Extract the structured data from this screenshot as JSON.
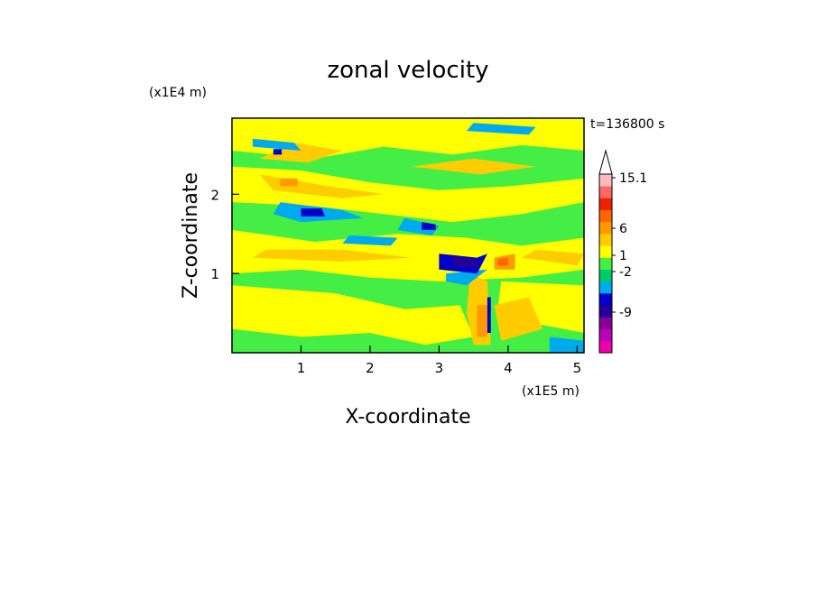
{
  "chart_data": {
    "type": "heatmap",
    "title": "zonal velocity",
    "xlabel": "X-coordinate",
    "ylabel": "Z-coordinate",
    "x_unit": "(x1E5 m)",
    "y_unit": "(x1E4 m)",
    "time_label": "t=136800 s",
    "xlim": [
      0,
      5.1
    ],
    "ylim": [
      0,
      2.96
    ],
    "x_ticks": [
      1,
      2,
      3,
      4,
      5
    ],
    "y_ticks": [
      1,
      2
    ],
    "colorbar": {
      "colors": [
        "#ee00aa",
        "#bb00bb",
        "#880099",
        "#220099",
        "#0000cc",
        "#00aaee",
        "#00cc66",
        "#44ee44",
        "#ffff00",
        "#ffcc00",
        "#ff9900",
        "#ff6600",
        "#ee2200",
        "#ff6666",
        "#ffbbbb"
      ],
      "tick_labels": [
        {
          "label": "15.1",
          "level": 15.1
        },
        {
          "label": "6",
          "level": 6
        },
        {
          "label": "1",
          "level": 1
        },
        {
          "label": "-2",
          "level": -2
        },
        {
          "label": "-9",
          "level": -9
        }
      ],
      "top_arrow_color": "#ffffff"
    },
    "background_level_color": "#44ee44",
    "regions": [
      {
        "shape": "band",
        "color": "#ffff00",
        "points": [
          [
            0,
            2.96
          ],
          [
            5.1,
            2.96
          ],
          [
            5.1,
            2.55
          ],
          [
            4.2,
            2.62
          ],
          [
            3.2,
            2.5
          ],
          [
            2.2,
            2.6
          ],
          [
            1.2,
            2.45
          ],
          [
            0,
            2.55
          ]
        ]
      },
      {
        "shape": "band",
        "color": "#ffff00",
        "points": [
          [
            0,
            2.35
          ],
          [
            1.0,
            2.3
          ],
          [
            2.0,
            2.15
          ],
          [
            3.0,
            2.05
          ],
          [
            4.0,
            2.1
          ],
          [
            5.1,
            2.2
          ],
          [
            5.1,
            1.9
          ],
          [
            4.2,
            1.75
          ],
          [
            3.2,
            1.65
          ],
          [
            2.2,
            1.75
          ],
          [
            1.2,
            1.85
          ],
          [
            0,
            1.9
          ]
        ]
      },
      {
        "shape": "band",
        "color": "#ffff00",
        "points": [
          [
            0,
            1.55
          ],
          [
            1.2,
            1.4
          ],
          [
            2.4,
            1.5
          ],
          [
            3.4,
            1.45
          ],
          [
            4.2,
            1.35
          ],
          [
            5.1,
            1.45
          ],
          [
            5.1,
            1.05
          ],
          [
            4.2,
            0.95
          ],
          [
            3.0,
            0.9
          ],
          [
            2.0,
            0.95
          ],
          [
            1.0,
            1.05
          ],
          [
            0,
            1.0
          ]
        ]
      },
      {
        "shape": "band",
        "color": "#ffff00",
        "points": [
          [
            0,
            0.85
          ],
          [
            1.5,
            0.75
          ],
          [
            2.5,
            0.55
          ],
          [
            3.3,
            0.6
          ],
          [
            3.5,
            0.2
          ],
          [
            2.8,
            0.1
          ],
          [
            2.0,
            0.25
          ],
          [
            1.0,
            0.2
          ],
          [
            0,
            0.3
          ]
        ]
      },
      {
        "shape": "band",
        "color": "#ffff00",
        "points": [
          [
            3.9,
            0.9
          ],
          [
            5.1,
            0.85
          ],
          [
            5.1,
            0.25
          ],
          [
            4.5,
            0.35
          ],
          [
            4.0,
            0.3
          ],
          [
            3.85,
            0.55
          ]
        ]
      },
      {
        "shape": "band",
        "color": "#ffcc00",
        "points": [
          [
            0.4,
            2.45
          ],
          [
            1.1,
            2.4
          ],
          [
            1.6,
            2.55
          ],
          [
            0.9,
            2.65
          ]
        ]
      },
      {
        "shape": "band",
        "color": "#ffcc00",
        "points": [
          [
            0.4,
            2.25
          ],
          [
            1.4,
            2.1
          ],
          [
            2.2,
            2.0
          ],
          [
            1.6,
            1.95
          ],
          [
            0.6,
            2.05
          ]
        ]
      },
      {
        "shape": "band",
        "color": "#ffcc00",
        "points": [
          [
            2.6,
            2.35
          ],
          [
            3.6,
            2.25
          ],
          [
            4.4,
            2.35
          ],
          [
            3.5,
            2.45
          ]
        ]
      },
      {
        "shape": "band",
        "color": "#ffcc00",
        "points": [
          [
            0.3,
            1.2
          ],
          [
            1.6,
            1.15
          ],
          [
            2.6,
            1.2
          ],
          [
            1.6,
            1.3
          ],
          [
            0.5,
            1.3
          ]
        ]
      },
      {
        "shape": "band",
        "color": "#ffcc00",
        "points": [
          [
            4.2,
            1.2
          ],
          [
            5.0,
            1.1
          ],
          [
            5.1,
            1.25
          ],
          [
            4.4,
            1.3
          ]
        ]
      },
      {
        "shape": "band",
        "color": "#ffcc00",
        "points": [
          [
            3.45,
            1.0
          ],
          [
            3.7,
            0.9
          ],
          [
            3.75,
            0.1
          ],
          [
            3.5,
            0.1
          ],
          [
            3.4,
            0.5
          ]
        ]
      },
      {
        "shape": "band",
        "color": "#ffcc00",
        "points": [
          [
            3.8,
            0.6
          ],
          [
            4.3,
            0.7
          ],
          [
            4.5,
            0.3
          ],
          [
            3.9,
            0.15
          ]
        ]
      },
      {
        "shape": "band",
        "color": "#ff9900",
        "points": [
          [
            0.7,
            2.2
          ],
          [
            0.95,
            2.2
          ],
          [
            0.95,
            2.1
          ],
          [
            0.7,
            2.1
          ]
        ]
      },
      {
        "shape": "band",
        "color": "#ff9900",
        "points": [
          [
            3.8,
            1.2
          ],
          [
            4.1,
            1.25
          ],
          [
            4.1,
            1.05
          ],
          [
            3.8,
            1.05
          ]
        ]
      },
      {
        "shape": "band",
        "color": "#ff6600",
        "points": [
          [
            3.85,
            1.18
          ],
          [
            4.0,
            1.2
          ],
          [
            4.0,
            1.1
          ],
          [
            3.85,
            1.1
          ]
        ]
      },
      {
        "shape": "band",
        "color": "#ff9900",
        "points": [
          [
            3.55,
            0.6
          ],
          [
            3.7,
            0.6
          ],
          [
            3.7,
            0.2
          ],
          [
            3.55,
            0.2
          ]
        ]
      },
      {
        "shape": "band",
        "color": "#00aaee",
        "points": [
          [
            0.3,
            2.7
          ],
          [
            0.9,
            2.65
          ],
          [
            1.0,
            2.55
          ],
          [
            0.3,
            2.6
          ]
        ]
      },
      {
        "shape": "band",
        "color": "#00aaee",
        "points": [
          [
            0.7,
            1.9
          ],
          [
            1.6,
            1.8
          ],
          [
            1.9,
            1.7
          ],
          [
            1.0,
            1.65
          ],
          [
            0.6,
            1.75
          ]
        ]
      },
      {
        "shape": "band",
        "color": "#00aaee",
        "points": [
          [
            2.5,
            1.7
          ],
          [
            3.0,
            1.6
          ],
          [
            2.9,
            1.48
          ],
          [
            2.4,
            1.55
          ]
        ]
      },
      {
        "shape": "band",
        "color": "#00aaee",
        "points": [
          [
            1.7,
            1.48
          ],
          [
            2.4,
            1.45
          ],
          [
            2.3,
            1.35
          ],
          [
            1.6,
            1.38
          ]
        ]
      },
      {
        "shape": "band",
        "color": "#00aaee",
        "points": [
          [
            3.5,
            2.9
          ],
          [
            4.4,
            2.85
          ],
          [
            4.3,
            2.75
          ],
          [
            3.4,
            2.8
          ]
        ]
      },
      {
        "shape": "band",
        "color": "#00aaee",
        "points": [
          [
            3.1,
            1.0
          ],
          [
            3.7,
            1.05
          ],
          [
            3.4,
            0.85
          ],
          [
            3.1,
            0.9
          ]
        ]
      },
      {
        "shape": "band",
        "color": "#00aaee",
        "points": [
          [
            4.6,
            0.2
          ],
          [
            5.1,
            0.15
          ],
          [
            5.1,
            0.0
          ],
          [
            4.6,
            0.0
          ]
        ]
      },
      {
        "shape": "band",
        "color": "#0000cc",
        "points": [
          [
            0.6,
            2.57
          ],
          [
            0.72,
            2.57
          ],
          [
            0.72,
            2.5
          ],
          [
            0.6,
            2.5
          ]
        ]
      },
      {
        "shape": "band",
        "color": "#0000cc",
        "points": [
          [
            1.0,
            1.82
          ],
          [
            1.3,
            1.82
          ],
          [
            1.35,
            1.72
          ],
          [
            1.0,
            1.72
          ]
        ]
      },
      {
        "shape": "band",
        "color": "#0000cc",
        "points": [
          [
            2.75,
            1.65
          ],
          [
            2.95,
            1.62
          ],
          [
            2.95,
            1.55
          ],
          [
            2.75,
            1.55
          ]
        ]
      },
      {
        "shape": "band",
        "color": "#0000cc",
        "points": [
          [
            3.0,
            1.25
          ],
          [
            3.55,
            1.2
          ],
          [
            3.7,
            1.25
          ],
          [
            3.55,
            1.0
          ],
          [
            3.0,
            1.05
          ]
        ]
      },
      {
        "shape": "band",
        "color": "#220099",
        "points": [
          [
            3.2,
            1.22
          ],
          [
            3.55,
            1.18
          ],
          [
            3.6,
            1.08
          ],
          [
            3.2,
            1.08
          ]
        ]
      },
      {
        "shape": "band",
        "color": "#0000cc",
        "points": [
          [
            3.7,
            0.7
          ],
          [
            3.75,
            0.7
          ],
          [
            3.75,
            0.25
          ],
          [
            3.7,
            0.25
          ]
        ]
      }
    ]
  }
}
